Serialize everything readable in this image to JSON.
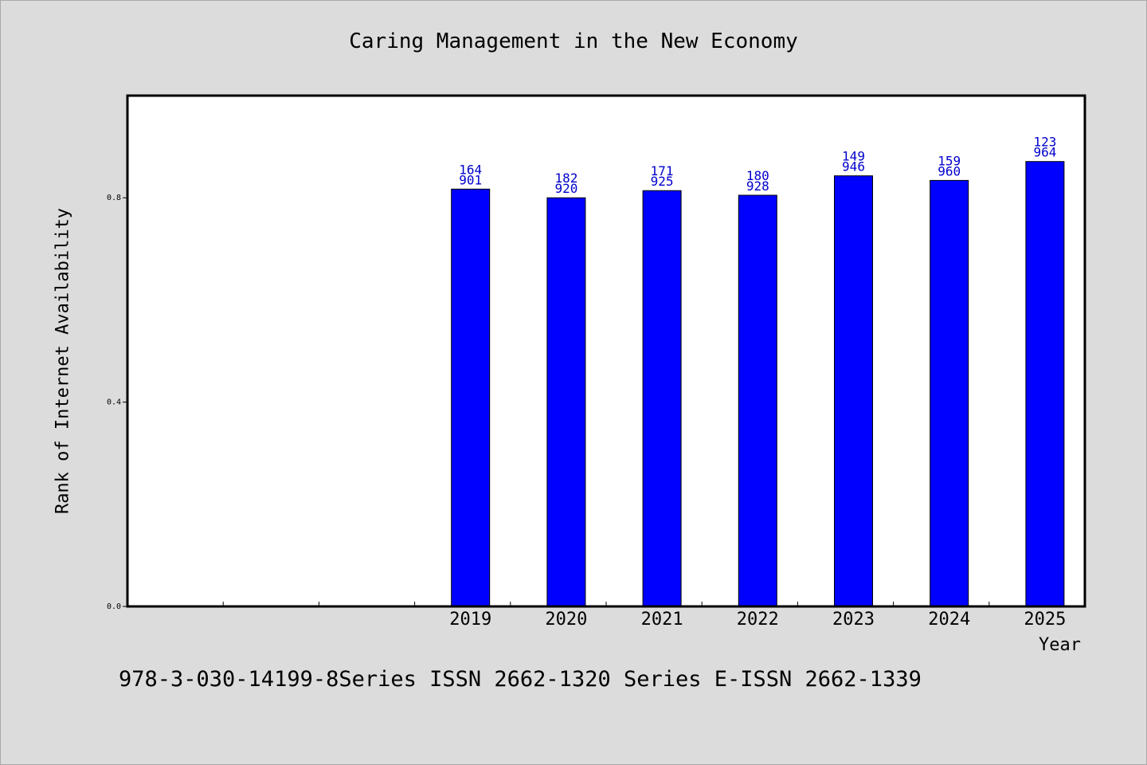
{
  "chart_data": {
    "type": "bar",
    "title": "Caring Management in the New Economy",
    "xlabel": "Year",
    "ylabel": "Rank of Internet Availability",
    "categories": [
      "",
      "",
      "",
      "2019",
      "2020",
      "2021",
      "2022",
      "2023",
      "2024",
      "2025"
    ],
    "values": [
      null,
      null,
      null,
      0.817,
      0.8,
      0.814,
      0.805,
      0.843,
      0.834,
      0.871
    ],
    "bar_labels": [
      null,
      null,
      null,
      [
        "164",
        "901"
      ],
      [
        "182",
        "920"
      ],
      [
        "171",
        "925"
      ],
      [
        "180",
        "928"
      ],
      [
        "149",
        "946"
      ],
      [
        "159",
        "960"
      ],
      [
        "123",
        "964"
      ]
    ],
    "ylim": [
      0,
      1.0
    ],
    "yticks": [
      "0.0",
      "0.4",
      "0.8"
    ],
    "yticks_values": [
      0.0,
      0.4,
      0.8
    ],
    "bar_color": "#0000ff",
    "label_color": "#0000cd",
    "grid": false
  },
  "footer": {
    "text": "978-3-030-14199-8Series ISSN 2662-1320 Series E-ISSN 2662-1339"
  }
}
